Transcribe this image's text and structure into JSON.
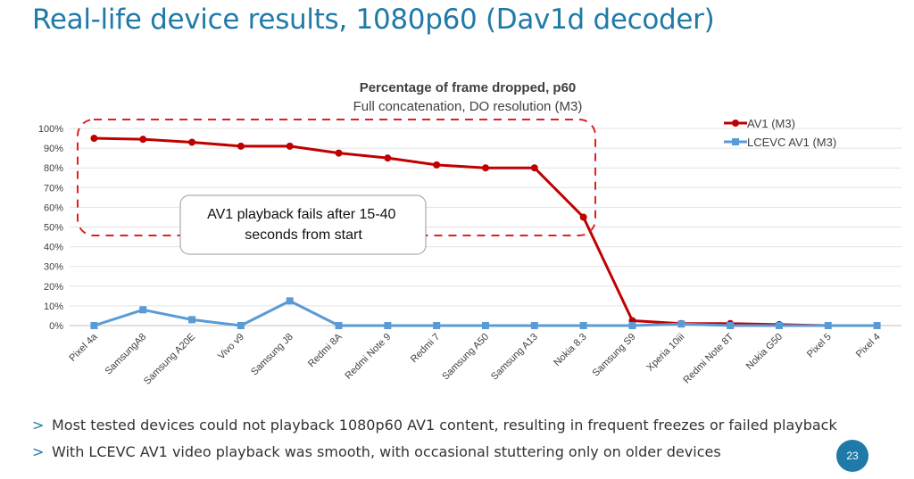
{
  "slide": {
    "title": "Real-life device results, 1080p60 (Dav1d decoder)",
    "bullets": [
      "Most tested devices could not playback 1080p60 AV1 content, resulting in frequent freezes or failed playback",
      "With LCEVC AV1 video playback was smooth, with occasional stuttering only on older devices"
    ],
    "bullet_marker": ">",
    "page_number": "23"
  },
  "colors": {
    "title": "#1f7aa8",
    "av1": "#c00000",
    "lcevc": "#5b9bd5",
    "highlight_box": "#e02020",
    "page_badge": "#1f7aa8"
  },
  "chart_data": {
    "type": "line",
    "title": "Percentage of frame dropped, p60",
    "subtitle": "Full concatenation, DO resolution (M3)",
    "xlabel": "",
    "ylabel": "",
    "ylim": [
      0,
      100
    ],
    "yticks": [
      "0%",
      "10%",
      "20%",
      "30%",
      "40%",
      "50%",
      "60%",
      "70%",
      "80%",
      "90%",
      "100%"
    ],
    "grid": true,
    "legend_position": "top-right",
    "categories": [
      "Pixel 4a",
      "SamsungA8",
      "Samsung A20E",
      "Vivo v9",
      "Samsung J8",
      "Redmi 8A",
      "Redmi Note 9",
      "Redmi 7",
      "Samsung A50",
      "Samsung A13",
      "Nokia 8.3",
      "Samsung S9",
      "Xperia 10iii",
      "Redmi Note 8T",
      "Nokia G50",
      "Pixel 5",
      "Pixel 4"
    ],
    "series": [
      {
        "name": "AV1 (M3)",
        "values": [
          95,
          94.5,
          93,
          91,
          91,
          87.5,
          85,
          81.5,
          80,
          80,
          55,
          2.5,
          1,
          1,
          0.5,
          0,
          0
        ]
      },
      {
        "name": "LCEVC AV1 (M3)",
        "values": [
          0,
          8,
          3,
          0,
          12.5,
          0,
          0,
          0,
          0,
          0,
          0,
          0,
          0.8,
          0,
          0,
          0,
          0
        ]
      }
    ],
    "annotation": "AV1 playback fails after 15-40 seconds from start"
  }
}
